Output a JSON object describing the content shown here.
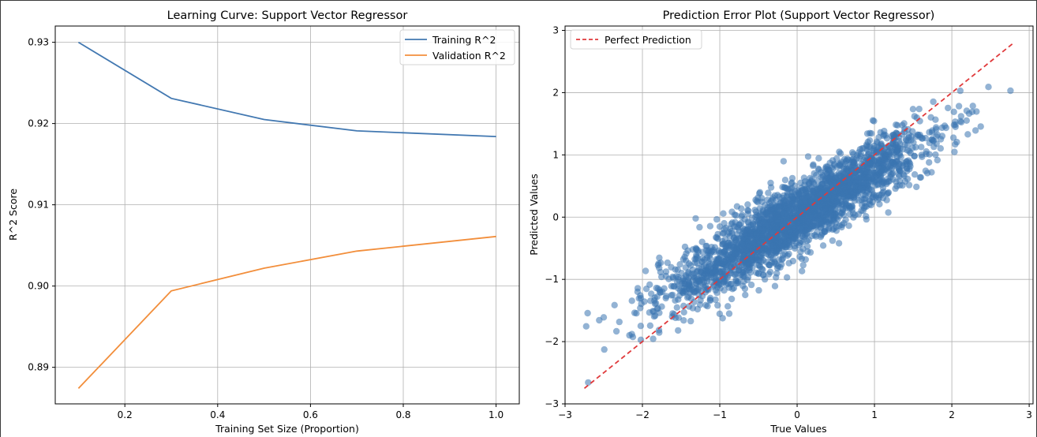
{
  "chart_data": [
    {
      "type": "line",
      "title": "Learning Curve: Support Vector Regressor",
      "xlabel": "Training Set Size (Proportion)",
      "ylabel": "R^2 Score",
      "xlim": [
        0.05,
        1.05
      ],
      "ylim": [
        0.8855,
        0.932
      ],
      "xticks": [
        0.2,
        0.4,
        0.6,
        0.8,
        1.0
      ],
      "xtick_labels": [
        "0.2",
        "0.4",
        "0.6",
        "0.8",
        "1.0"
      ],
      "yticks": [
        0.89,
        0.9,
        0.91,
        0.92,
        0.93
      ],
      "ytick_labels": [
        "0.89",
        "0.90",
        "0.91",
        "0.92",
        "0.93"
      ],
      "grid": true,
      "legend_position": "top-right",
      "x": [
        0.1,
        0.3,
        0.5,
        0.7,
        1.0
      ],
      "series": [
        {
          "name": "Training R^2",
          "color": "#4278b1",
          "values": [
            0.93,
            0.9231,
            0.9205,
            0.9191,
            0.9184
          ]
        },
        {
          "name": "Validation R^2",
          "color": "#f28e3b",
          "values": [
            0.8874,
            0.8994,
            0.9022,
            0.9043,
            0.9061
          ]
        }
      ]
    },
    {
      "type": "scatter",
      "title": "Prediction Error Plot (Support Vector Regressor)",
      "xlabel": "True Values",
      "ylabel": "Predicted Values",
      "xlim": [
        -3.0,
        3.05
      ],
      "ylim": [
        -3.0,
        3.07
      ],
      "xticks": [
        -3,
        -2,
        -1,
        0,
        1,
        2,
        3
      ],
      "xtick_labels": [
        "−3",
        "−2",
        "−1",
        "0",
        "1",
        "2",
        "3"
      ],
      "yticks": [
        -3,
        -2,
        -1,
        0,
        1,
        2,
        3
      ],
      "ytick_labels": [
        "−3",
        "−2",
        "−1",
        "0",
        "1",
        "2",
        "3"
      ],
      "grid": true,
      "legend_position": "top-left",
      "point_color": "#3a75b0",
      "point_estimate": {
        "x_range": [
          -2.75,
          2.8
        ],
        "slope": 0.74,
        "noise_sd": 0.27
      },
      "reference_line": {
        "name": "Perfect Prediction",
        "color": "#e0393b",
        "style": "dashed",
        "x": [
          -2.75,
          2.8
        ],
        "y": [
          -2.75,
          2.8
        ]
      }
    }
  ]
}
